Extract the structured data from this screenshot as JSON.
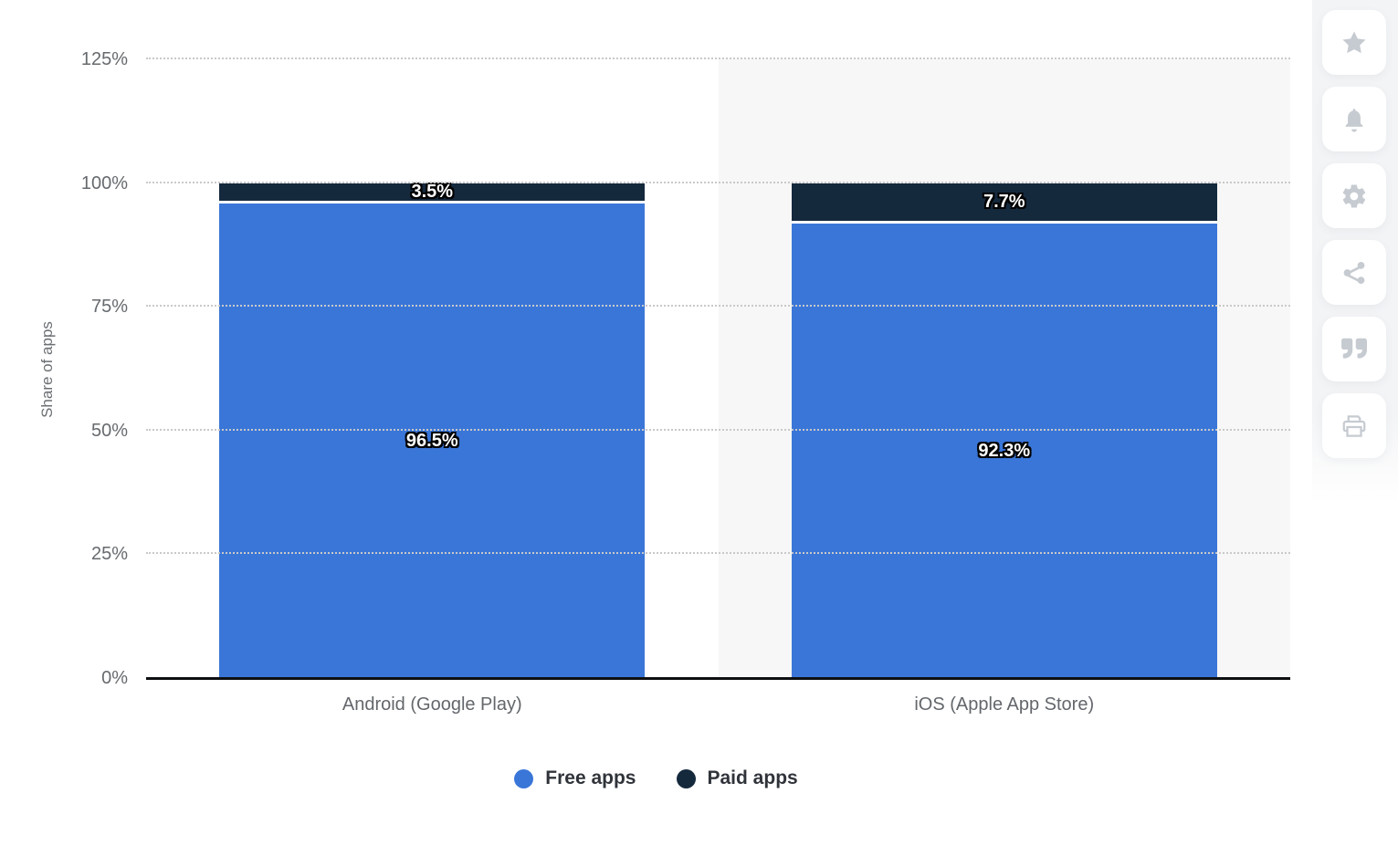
{
  "chart_data": {
    "type": "bar",
    "variant": "stacked-vertical-column",
    "title": "",
    "categories": [
      "Android (Google Play)",
      "iOS (Apple App Store)"
    ],
    "series": [
      {
        "name": "Free apps",
        "color": "#3A76D8",
        "values": [
          96.5,
          92.3
        ],
        "data_labels": [
          "96.5%",
          "92.3%"
        ]
      },
      {
        "name": "Paid apps",
        "color": "#15293D",
        "values": [
          3.5,
          7.7
        ],
        "data_labels": [
          "3.5%",
          "7.7%"
        ]
      }
    ],
    "stack_order_bottom_to_top": [
      "Free apps",
      "Paid apps"
    ],
    "xlabel": "",
    "ylabel": "Share of apps",
    "ylim": [
      0,
      125
    ],
    "yticks": [
      0,
      25,
      50,
      75,
      100,
      125
    ],
    "ytick_labels": [
      "0%",
      "25%",
      "50%",
      "75%",
      "100%",
      "125%"
    ],
    "grid": "horizontal-dotted",
    "legend_position": "bottom-center",
    "highlighted_category_index": 1,
    "data_label_style": "white-with-black-outline"
  },
  "legend": {
    "items": [
      {
        "label": "Free apps",
        "color": "#3A76D8"
      },
      {
        "label": "Paid apps",
        "color": "#15293D"
      }
    ]
  },
  "sidebar": {
    "icons": [
      "star",
      "bell",
      "settings",
      "share",
      "citation",
      "print"
    ]
  },
  "colors": {
    "free_apps": "#3A76D8",
    "paid_apps": "#15293D",
    "grid_line": "#c9c9c9",
    "axis_line": "#0d0f12",
    "tick_label": "#666a6e",
    "highlight_band": "#f7f7f7",
    "sidebar_bg": "#f3f4f6",
    "sidebar_icon": "#c6cbd1",
    "legend_text": "#30343a"
  }
}
